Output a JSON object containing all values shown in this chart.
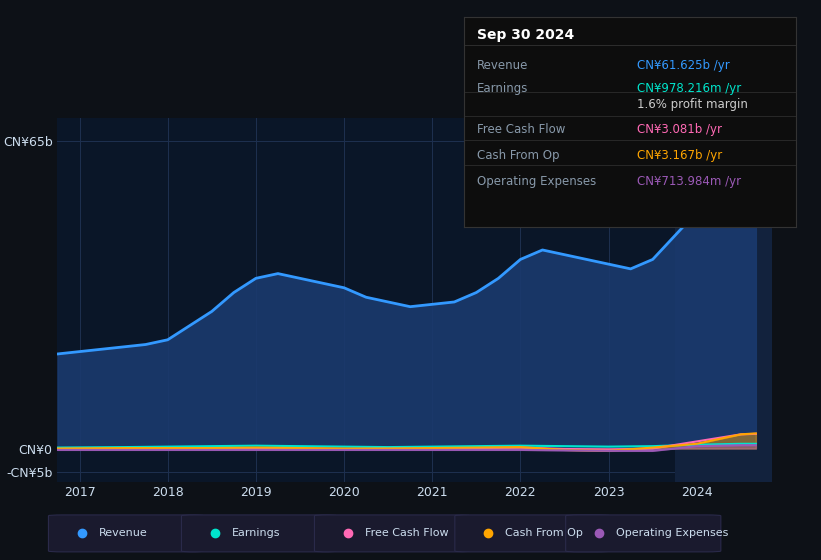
{
  "bg_color": "#0d1117",
  "chart_area_color": "#0a1628",
  "ylim": [
    -7000000000,
    70000000000
  ],
  "xlim": [
    2016.75,
    2024.85
  ],
  "ytick_vals": [
    -5000000000,
    0,
    65000000000
  ],
  "ytick_labels": [
    "-CN¥5b",
    "CN¥0",
    "CN¥65b"
  ],
  "xticks": [
    2017,
    2018,
    2019,
    2020,
    2021,
    2022,
    2023,
    2024
  ],
  "revenue_color": "#3399ff",
  "revenue_fill": "#1a3a6e",
  "earnings_color": "#00e5cc",
  "fcf_color": "#ff69b4",
  "cashfromop_color": "#ffa500",
  "opex_color": "#9b59b6",
  "revenue_data_x": [
    2016.75,
    2017.0,
    2017.25,
    2017.5,
    2017.75,
    2018.0,
    2018.25,
    2018.5,
    2018.75,
    2019.0,
    2019.25,
    2019.5,
    2019.75,
    2020.0,
    2020.25,
    2020.5,
    2020.75,
    2021.0,
    2021.25,
    2021.5,
    2021.75,
    2022.0,
    2022.25,
    2022.5,
    2022.75,
    2023.0,
    2023.25,
    2023.5,
    2023.75,
    2024.0,
    2024.25,
    2024.5,
    2024.67
  ],
  "revenue_data_y": [
    20000000000,
    20500000000,
    21000000000,
    21500000000,
    22000000000,
    23000000000,
    26000000000,
    29000000000,
    33000000000,
    36000000000,
    37000000000,
    36000000000,
    35000000000,
    34000000000,
    32000000000,
    31000000000,
    30000000000,
    30500000000,
    31000000000,
    33000000000,
    36000000000,
    40000000000,
    42000000000,
    41000000000,
    40000000000,
    39000000000,
    38000000000,
    40000000000,
    45000000000,
    50000000000,
    55000000000,
    60000000000,
    62000000000
  ],
  "earnings_data_x": [
    2016.75,
    2017.5,
    2018.0,
    2018.5,
    2019.0,
    2019.5,
    2020.0,
    2020.5,
    2021.0,
    2021.5,
    2022.0,
    2022.5,
    2023.0,
    2023.5,
    2024.0,
    2024.5,
    2024.67
  ],
  "earnings_data_y": [
    200000000,
    300000000,
    400000000,
    500000000,
    600000000,
    500000000,
    400000000,
    300000000,
    400000000,
    500000000,
    600000000,
    500000000,
    400000000,
    500000000,
    800000000,
    1000000000,
    1000000000
  ],
  "fcf_data_x": [
    2016.75,
    2017.5,
    2018.0,
    2018.5,
    2019.0,
    2019.5,
    2020.0,
    2020.5,
    2021.0,
    2021.5,
    2022.0,
    2022.5,
    2023.0,
    2023.5,
    2024.0,
    2024.5,
    2024.67
  ],
  "fcf_data_y": [
    -100000000,
    -50000000,
    0,
    0,
    100000000,
    0,
    -100000000,
    -50000000,
    0,
    100000000,
    200000000,
    -100000000,
    -200000000,
    0,
    1500000000,
    3000000000,
    3100000000
  ],
  "cashop_data_x": [
    2016.75,
    2017.5,
    2018.0,
    2018.5,
    2019.0,
    2019.5,
    2020.0,
    2020.5,
    2021.0,
    2021.5,
    2022.0,
    2022.5,
    2023.0,
    2023.5,
    2024.0,
    2024.5,
    2024.67
  ],
  "cashop_data_y": [
    0,
    100000000,
    100000000,
    100000000,
    200000000,
    100000000,
    0,
    0,
    100000000,
    200000000,
    300000000,
    -300000000,
    -500000000,
    200000000,
    1000000000,
    3000000000,
    3200000000
  ],
  "opex_data_x": [
    2016.75,
    2017.5,
    2018.0,
    2018.5,
    2019.0,
    2019.5,
    2020.0,
    2020.5,
    2021.0,
    2021.5,
    2022.0,
    2022.5,
    2023.0,
    2023.5,
    2024.0,
    2024.5,
    2024.67
  ],
  "opex_data_y": [
    -300000000,
    -300000000,
    -300000000,
    -300000000,
    -300000000,
    -300000000,
    -300000000,
    -300000000,
    -300000000,
    -300000000,
    -300000000,
    -400000000,
    -500000000,
    -500000000,
    500000000,
    700000000,
    710000000
  ],
  "highlight_x_start": 2023.75,
  "info_table": {
    "date": "Sep 30 2024",
    "rows": [
      {
        "label": "Revenue",
        "value": "CN¥61.625b /yr",
        "value_color": "#3399ff"
      },
      {
        "label": "Earnings",
        "value": "CN¥978.216m /yr",
        "value_color": "#00e5cc"
      },
      {
        "label": "",
        "value": "1.6% profit margin",
        "value_color": "#cccccc"
      },
      {
        "label": "Free Cash Flow",
        "value": "CN¥3.081b /yr",
        "value_color": "#ff69b4"
      },
      {
        "label": "Cash From Op",
        "value": "CN¥3.167b /yr",
        "value_color": "#ffa500"
      },
      {
        "label": "Operating Expenses",
        "value": "CN¥713.984m /yr",
        "value_color": "#9b59b6"
      }
    ]
  },
  "legend": [
    {
      "label": "Revenue",
      "color": "#3399ff"
    },
    {
      "label": "Earnings",
      "color": "#00e5cc"
    },
    {
      "label": "Free Cash Flow",
      "color": "#ff69b4"
    },
    {
      "label": "Cash From Op",
      "color": "#ffa500"
    },
    {
      "label": "Operating Expenses",
      "color": "#9b59b6"
    }
  ],
  "grid_color": "#1e3050",
  "text_color": "#8899aa",
  "label_color": "#ccddee"
}
